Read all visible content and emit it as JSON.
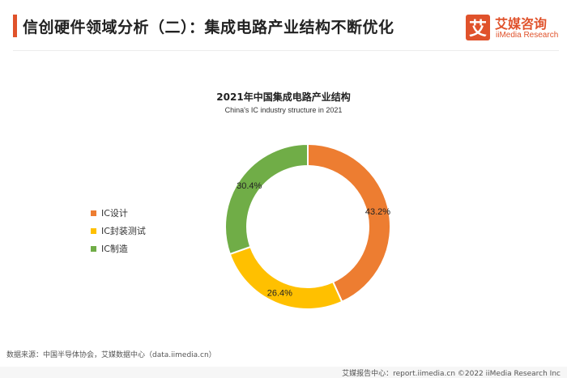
{
  "header": {
    "title": "信创硬件领域分析（二）：集成电路产业结构不断优化"
  },
  "logo": {
    "mark": "艾",
    "cn": "艾媒咨询",
    "en": "iiMedia Research",
    "color": "#e0522b"
  },
  "chart_data": {
    "type": "pie",
    "variant": "donut",
    "title": "2021年中国集成电路产业结构",
    "subtitle": "China's IC industry structure in 2021",
    "categories": [
      "IC设计",
      "IC封装测试",
      "IC制造"
    ],
    "values": [
      43.2,
      26.4,
      30.4
    ],
    "value_labels": [
      "43.2%",
      "26.4%",
      "30.4%"
    ],
    "colors": [
      "#ed7d31",
      "#ffc000",
      "#70ad47"
    ],
    "legend_position": "left"
  },
  "footer": {
    "source": "数据来源：中国半导体协会，艾媒数据中心（data.iimedia.cn）",
    "right": "艾媒报告中心：report.iimedia.cn   ©2022  iiMedia Research  Inc"
  }
}
